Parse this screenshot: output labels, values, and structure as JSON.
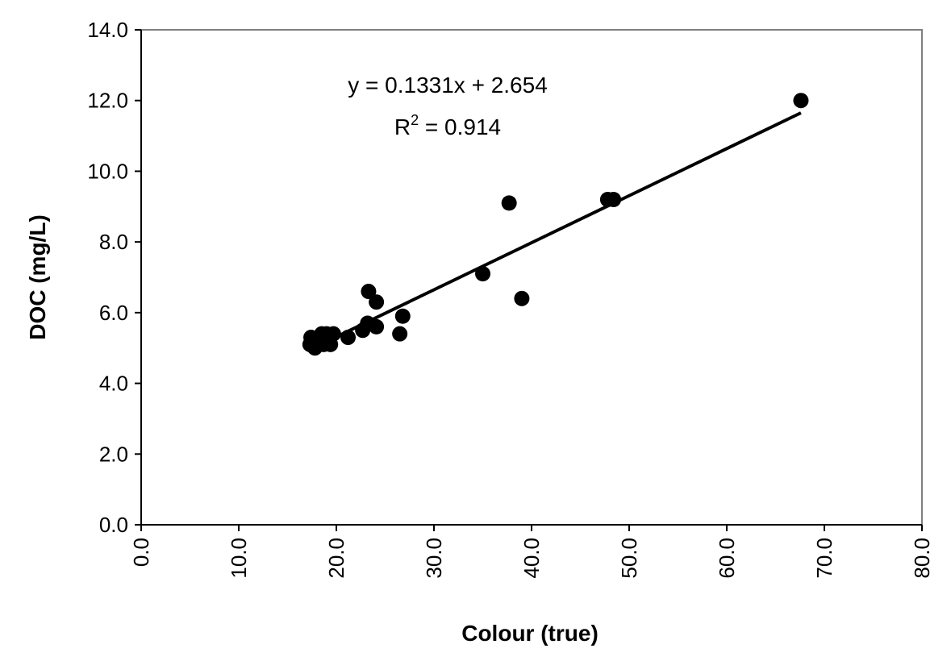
{
  "chart_data": {
    "type": "scatter",
    "xlabel": "Colour (true)",
    "ylabel": "DOC (mg/L)",
    "xlim": [
      0,
      80
    ],
    "ylim": [
      0,
      14
    ],
    "x_ticks": [
      0,
      10,
      20,
      30,
      40,
      50,
      60,
      70,
      80
    ],
    "y_ticks": [
      0,
      2,
      4,
      6,
      8,
      10,
      12,
      14
    ],
    "x_tick_labels": [
      "0.0",
      "10.0",
      "20.0",
      "30.0",
      "40.0",
      "50.0",
      "60.0",
      "70.0",
      "80.0"
    ],
    "y_tick_labels": [
      "0.0",
      "2.0",
      "4.0",
      "6.0",
      "8.0",
      "10.0",
      "12.0",
      "14.0"
    ],
    "grid": false,
    "legend": "none",
    "marker_color": "#000000",
    "trendline": {
      "slope": 0.1331,
      "intercept": 2.654,
      "x_range": [
        17.4,
        67.6
      ],
      "equation_label": "y = 0.1331x + 2.654",
      "r2_label_prefix": "R",
      "r2_label_sup": "2",
      "r2_label_suffix": " = 0.914"
    },
    "points": [
      {
        "x": 17.3,
        "y": 5.1
      },
      {
        "x": 17.4,
        "y": 5.3
      },
      {
        "x": 17.8,
        "y": 5.0
      },
      {
        "x": 18.0,
        "y": 5.2
      },
      {
        "x": 18.3,
        "y": 5.1
      },
      {
        "x": 18.5,
        "y": 5.4
      },
      {
        "x": 18.7,
        "y": 5.1
      },
      {
        "x": 19.0,
        "y": 5.4
      },
      {
        "x": 19.2,
        "y": 5.2
      },
      {
        "x": 19.4,
        "y": 5.1
      },
      {
        "x": 19.7,
        "y": 5.4
      },
      {
        "x": 21.2,
        "y": 5.3
      },
      {
        "x": 22.7,
        "y": 5.5
      },
      {
        "x": 23.2,
        "y": 5.7
      },
      {
        "x": 23.3,
        "y": 6.6
      },
      {
        "x": 24.1,
        "y": 5.6
      },
      {
        "x": 24.1,
        "y": 6.3
      },
      {
        "x": 26.5,
        "y": 5.4
      },
      {
        "x": 26.8,
        "y": 5.9
      },
      {
        "x": 35.0,
        "y": 7.1
      },
      {
        "x": 37.7,
        "y": 9.1
      },
      {
        "x": 39.0,
        "y": 6.4
      },
      {
        "x": 47.8,
        "y": 9.2
      },
      {
        "x": 48.4,
        "y": 9.2
      },
      {
        "x": 67.6,
        "y": 12.0
      }
    ]
  }
}
